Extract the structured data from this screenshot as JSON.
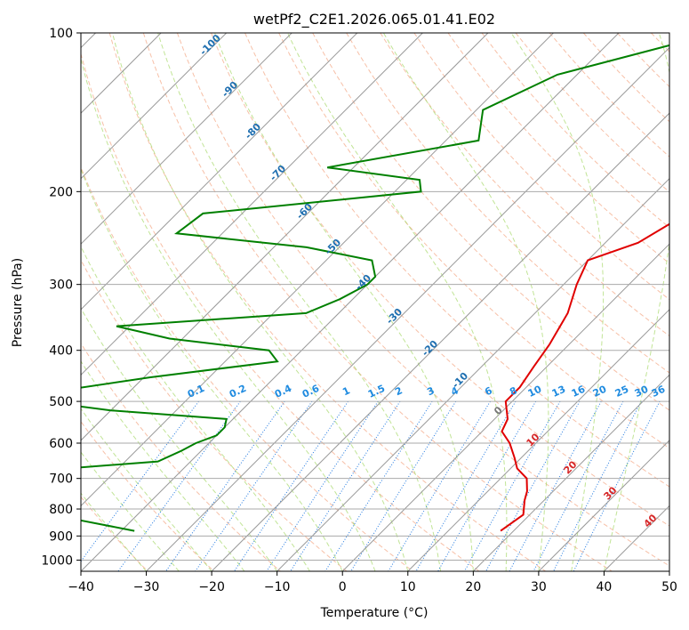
{
  "chart_data": {
    "type": "line",
    "title": "wetPf2_C2E1.2026.065.01.41.E02",
    "xlabel": "Temperature (°C)",
    "ylabel": "Pressure (hPa)",
    "xlim": [
      -40,
      50
    ],
    "ylim": [
      1050,
      100
    ],
    "y_scale": "log",
    "grid": true,
    "x_ticks": [
      -40,
      -30,
      -20,
      -10,
      0,
      10,
      20,
      30,
      40,
      50
    ],
    "y_ticks": [
      100,
      200,
      300,
      400,
      500,
      600,
      700,
      800,
      900,
      1000
    ],
    "series": [
      {
        "color": "#e00000",
        "pressure": [
          100,
          130,
          160,
          200,
          230,
          250,
          270,
          300,
          340,
          390,
          430,
          470,
          500,
          540,
          570,
          600,
          640,
          670,
          700,
          740,
          770,
          820,
          880
        ],
        "temperature": [
          -3,
          -4,
          -4,
          -5,
          -3,
          -5,
          -10,
          -8,
          -5,
          -3,
          -2,
          -1,
          -1,
          2,
          3,
          6,
          9,
          11,
          14,
          16,
          17,
          19,
          18
        ]
      },
      {
        "color": "#008000",
        "pressure": [
          100,
          120,
          140,
          160,
          180,
          190,
          200,
          220,
          240,
          255,
          270,
          290,
          300,
          320,
          340,
          360,
          380,
          400,
          420,
          450,
          480,
          500,
          520,
          540,
          560,
          580,
          600,
          620,
          650,
          680,
          720,
          750,
          790,
          810,
          840,
          880
        ],
        "temperature": [
          -25,
          -43,
          -49,
          -45,
          -64,
          -48,
          -46,
          -76,
          -77,
          -55,
          -43,
          -40,
          -40,
          -42,
          -45,
          -72,
          -62,
          -45,
          -42,
          -59,
          -72,
          -72,
          -60,
          -41,
          -40,
          -40,
          -42,
          -43,
          -45,
          -64,
          -82,
          -66,
          -52,
          -52,
          -48,
          -38
        ]
      }
    ],
    "dry_adiabat_labels": [
      "-100",
      "-90",
      "-80",
      "-70",
      "-60",
      "-50",
      "-40",
      "-30",
      "-20",
      "-10",
      "0",
      "10",
      "20",
      "30",
      "40"
    ],
    "mixing_ratio_labels": [
      "0.1",
      "0.2",
      "0.4",
      "0.6",
      "1",
      "1.5",
      "2",
      "3",
      "4",
      "6",
      "8",
      "10",
      "13",
      "16",
      "20",
      "25",
      "30",
      "36"
    ]
  }
}
